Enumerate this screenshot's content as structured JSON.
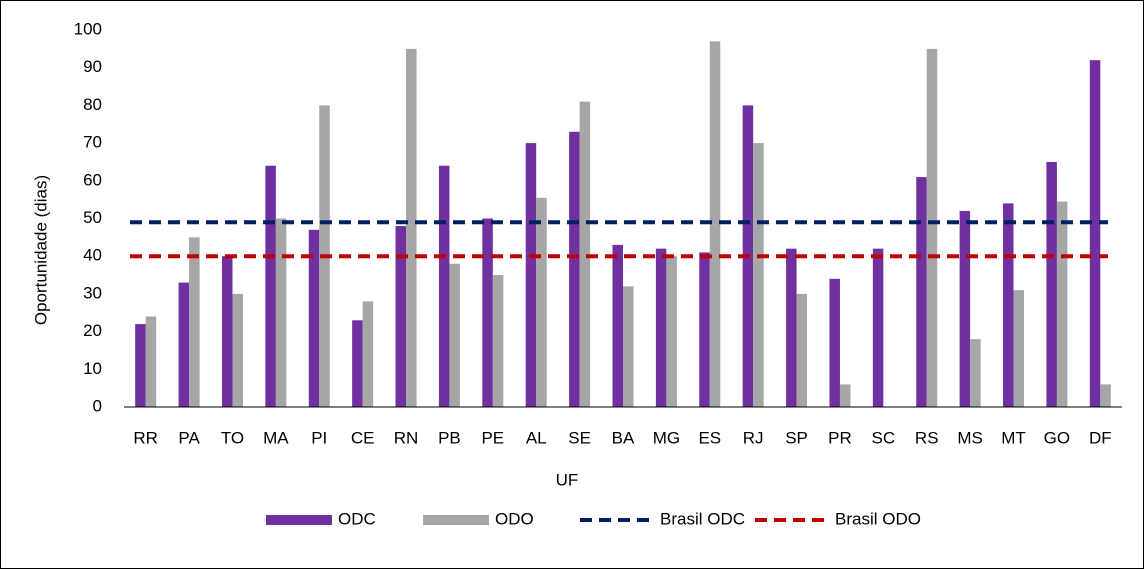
{
  "chart_data": {
    "type": "bar",
    "x_label": "UF",
    "y_label": "Oportunidade (dias)",
    "categories": [
      "RR",
      "PA",
      "TO",
      "MA",
      "PI",
      "CE",
      "RN",
      "PB",
      "PE",
      "AL",
      "SE",
      "BA",
      "MG",
      "ES",
      "RJ",
      "SP",
      "PR",
      "SC",
      "RS",
      "MS",
      "MT",
      "GO",
      "DF"
    ],
    "series": [
      {
        "name": "ODC",
        "color": "#7030a0",
        "values": [
          22,
          33,
          40,
          64,
          47,
          23,
          48,
          64,
          50,
          70,
          73,
          43,
          42,
          41,
          80,
          42,
          34,
          42,
          61,
          52,
          54,
          65,
          92
        ]
      },
      {
        "name": "ODO",
        "color": "#a6a6a6",
        "values": [
          24,
          45,
          30,
          50,
          80,
          28,
          95,
          38,
          35,
          55.5,
          81,
          32,
          40,
          97,
          70,
          30,
          6,
          null,
          95,
          18,
          31,
          54.5,
          6
        ]
      }
    ],
    "reference_lines": [
      {
        "name": "Brasil ODC",
        "color": "#002060",
        "value": 49
      },
      {
        "name": "Brasil ODO",
        "color": "#c00000",
        "value": 40
      }
    ],
    "ylim": [
      0,
      100
    ],
    "yticks": [
      0,
      10,
      20,
      30,
      40,
      50,
      60,
      70,
      80,
      90,
      100
    ],
    "grid": false,
    "legend": "bottom"
  }
}
